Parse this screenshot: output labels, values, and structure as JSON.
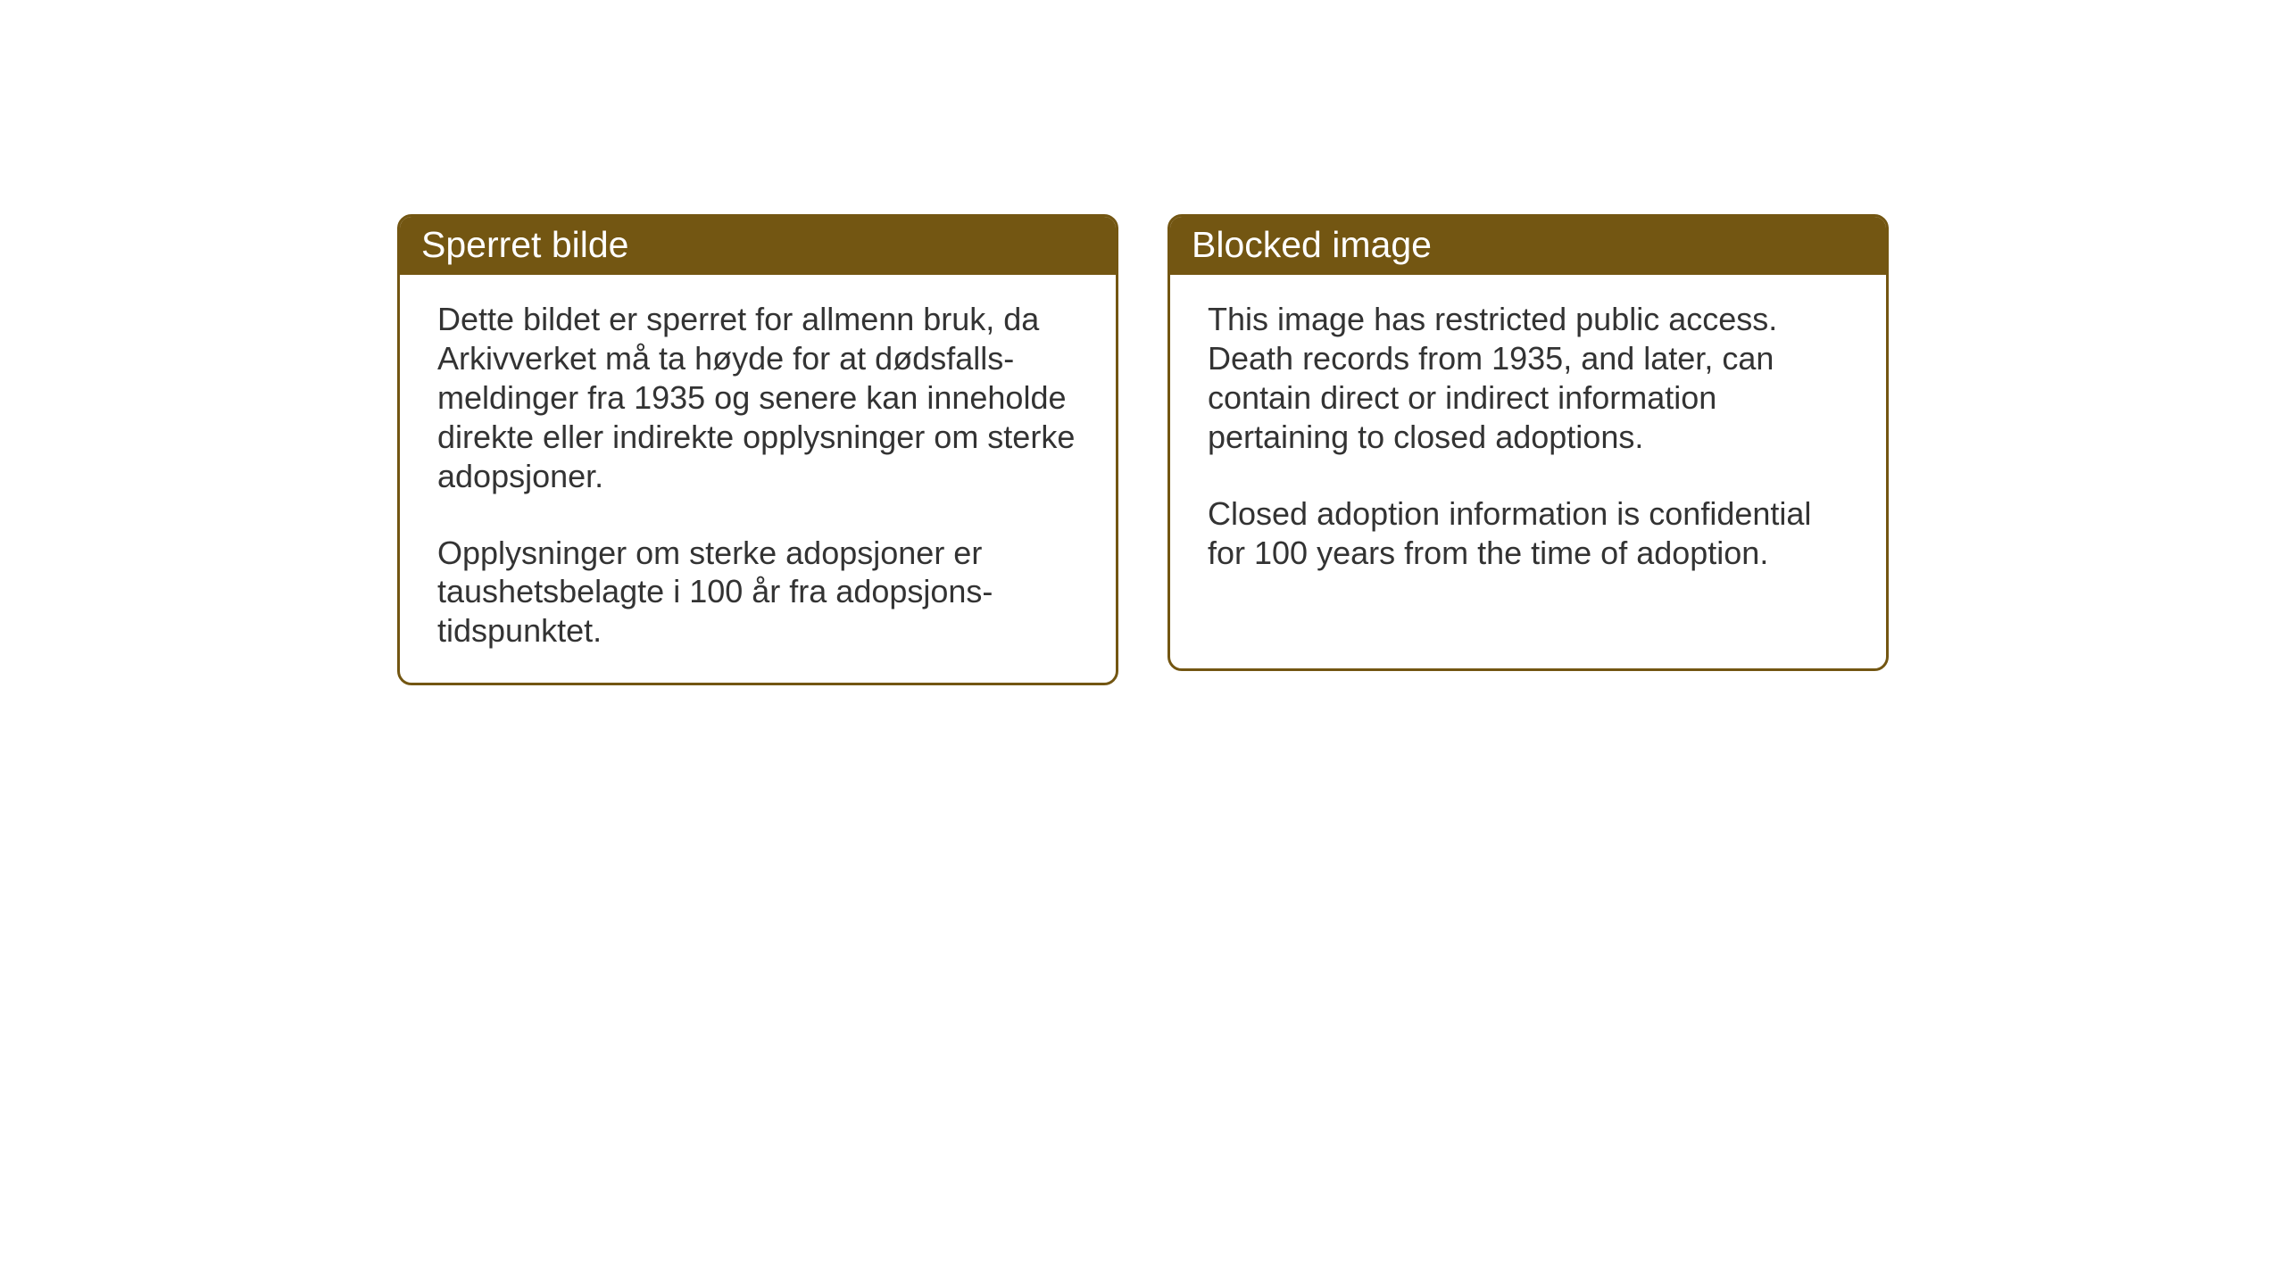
{
  "cards": {
    "norwegian": {
      "title": "Sperret bilde",
      "paragraph1": "Dette bildet er sperret for allmenn bruk, da Arkivverket må ta høyde for at dødsfalls-meldinger fra 1935 og senere kan inneholde direkte eller indirekte opplysninger om sterke adopsjoner.",
      "paragraph2": "Opplysninger om sterke adopsjoner er taushetsbelagte i 100 år fra adopsjons-tidspunktet."
    },
    "english": {
      "title": "Blocked image",
      "paragraph1": "This image has restricted public access. Death records from 1935, and later, can contain direct or indirect information pertaining to closed adoptions.",
      "paragraph2": "Closed adoption information is confidential for 100 years from the time of adoption."
    }
  },
  "style": {
    "header_bg_color": "#735612",
    "header_text_color": "#ffffff",
    "border_color": "#735612",
    "body_text_color": "#333333",
    "card_bg_color": "#ffffff",
    "page_bg_color": "#ffffff",
    "header_fontsize": 41,
    "body_fontsize": 36,
    "border_radius": 16,
    "border_width": 3
  }
}
